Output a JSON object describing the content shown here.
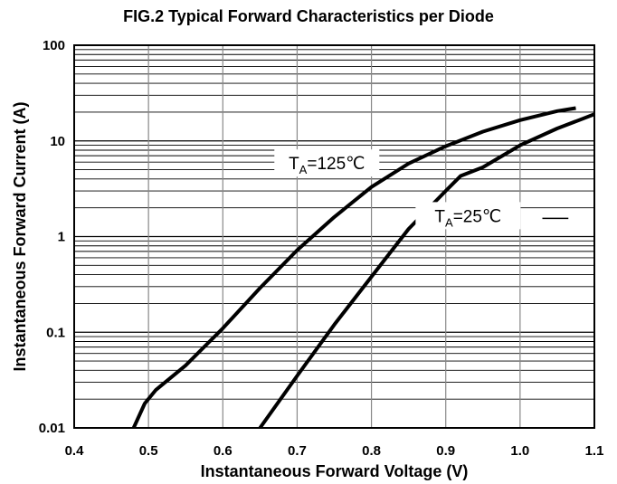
{
  "chart_data": {
    "type": "line",
    "title": "FIG.2 Typical Forward Characteristics per Diode",
    "xlabel": "Instantaneous Forward Voltage (V)",
    "ylabel": "Instantaneous Forward Current (A)",
    "xlim": [
      0.4,
      1.1
    ],
    "ylim": [
      0.01,
      100
    ],
    "yscale": "log",
    "grid": true,
    "x_ticks": [
      "0.4",
      "0.5",
      "0.6",
      "0.7",
      "0.8",
      "0.9",
      "1.0",
      "1.1"
    ],
    "x_tick_values": [
      0.4,
      0.5,
      0.6,
      0.7,
      0.8,
      0.9,
      1.0,
      1.1
    ],
    "y_ticks": [
      "0.01",
      "0.1",
      "1",
      "10",
      "100"
    ],
    "y_tick_values": [
      0.01,
      0.1,
      1,
      10,
      100
    ],
    "annotations": [
      {
        "base": "T",
        "sub": "A",
        "rest": "=125℃",
        "series": 0
      },
      {
        "base": "T",
        "sub": "A",
        "rest": "=25℃",
        "series": 1
      }
    ],
    "series": [
      {
        "name": "TA=125℃",
        "x": [
          0.48,
          0.495,
          0.51,
          0.55,
          0.6,
          0.65,
          0.7,
          0.75,
          0.8,
          0.85,
          0.9,
          0.95,
          1.0,
          1.05,
          1.075
        ],
        "y": [
          0.01,
          0.018,
          0.025,
          0.045,
          0.11,
          0.29,
          0.72,
          1.6,
          3.3,
          5.8,
          8.8,
          12.5,
          16.5,
          20.5,
          22
        ]
      },
      {
        "name": "TA=25℃",
        "x": [
          0.65,
          0.7,
          0.75,
          0.8,
          0.85,
          0.9,
          0.92,
          0.95,
          1.0,
          1.05,
          1.1
        ],
        "y": [
          0.01,
          0.035,
          0.12,
          0.38,
          1.2,
          3.0,
          4.3,
          5.3,
          9.0,
          13.5,
          19
        ]
      }
    ]
  }
}
